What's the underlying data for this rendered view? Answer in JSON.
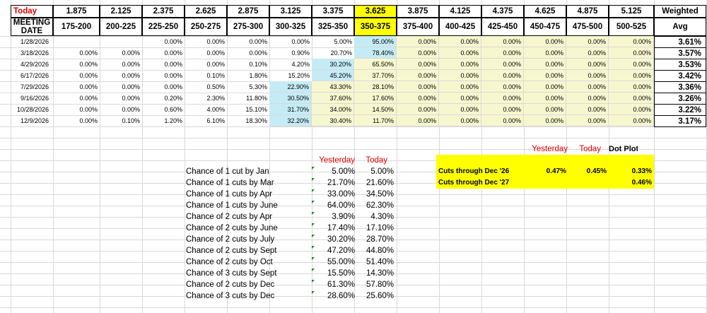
{
  "colors": {
    "highlight_yellow": "#ffff00",
    "pale_yellow": "#f7f7cf",
    "pale_blue": "#c5ecf5",
    "red": "#e00000",
    "comment_marker_green": "#1a8a1a"
  },
  "header": {
    "today_label": "Today",
    "meeting_label_line1": "MEETING",
    "meeting_label_line2": "DATE",
    "midpoints": [
      "1.875",
      "2.125",
      "2.375",
      "2.625",
      "2.875",
      "3.125",
      "3.375",
      "3.625",
      "3.875",
      "4.125",
      "4.375",
      "4.625",
      "4.875",
      "5.125"
    ],
    "ranges": [
      "175-200",
      "200-225",
      "225-250",
      "250-275",
      "275-300",
      "300-325",
      "325-350",
      "350-375",
      "375-400",
      "400-425",
      "425-450",
      "450-475",
      "475-500",
      "500-525"
    ],
    "weighted_label": "Weighted",
    "avg_label": "Avg"
  },
  "rows": [
    {
      "date": "1/28/2026",
      "vals": [
        "",
        "",
        "0.00%",
        "0.00%",
        "0.00%",
        "0.00%",
        "5.00%",
        "95.00%",
        "0.00%",
        "0.00%",
        "0.00%",
        "0.00%",
        "0.00%",
        "0.00%"
      ],
      "fills": [
        "",
        "",
        "",
        "",
        "",
        "",
        "",
        "b",
        "y",
        "y",
        "y",
        "y",
        "y",
        "y"
      ],
      "avg": "3.61%"
    },
    {
      "date": "3/18/2026",
      "vals": [
        "0.00%",
        "0.00%",
        "0.00%",
        "0.00%",
        "0.00%",
        "0.90%",
        "20.70%",
        "78.40%",
        "0.00%",
        "0.00%",
        "0.00%",
        "0.00%",
        "0.00%",
        "0.00%"
      ],
      "fills": [
        "",
        "",
        "",
        "",
        "",
        "",
        "",
        "b",
        "y",
        "y",
        "y",
        "y",
        "y",
        "y"
      ],
      "avg": "3.57%"
    },
    {
      "date": "4/29/2026",
      "vals": [
        "0.00%",
        "0.00%",
        "0.00%",
        "0.00%",
        "0.10%",
        "4.20%",
        "30.20%",
        "65.50%",
        "0.00%",
        "0.00%",
        "0.00%",
        "0.00%",
        "0.00%",
        "0.00%"
      ],
      "fills": [
        "",
        "",
        "",
        "",
        "",
        "",
        "b",
        "y",
        "y",
        "y",
        "y",
        "y",
        "y",
        "y"
      ],
      "avg": "3.53%"
    },
    {
      "date": "6/17/2026",
      "vals": [
        "0.00%",
        "0.00%",
        "0.00%",
        "0.10%",
        "1.80%",
        "15.20%",
        "45.20%",
        "37.70%",
        "0.00%",
        "0.00%",
        "0.00%",
        "0.00%",
        "0.00%",
        "0.00%"
      ],
      "fills": [
        "",
        "",
        "",
        "",
        "",
        "",
        "b",
        "y",
        "y",
        "y",
        "y",
        "y",
        "y",
        "y"
      ],
      "avg": "3.42%"
    },
    {
      "date": "7/29/2026",
      "vals": [
        "0.00%",
        "0.00%",
        "0.00%",
        "0.50%",
        "5.30%",
        "22.90%",
        "43.30%",
        "28.10%",
        "0.00%",
        "0.00%",
        "0.00%",
        "0.00%",
        "0.00%",
        "0.00%"
      ],
      "fills": [
        "",
        "",
        "",
        "",
        "",
        "b",
        "y",
        "y",
        "y",
        "y",
        "y",
        "y",
        "y",
        "y"
      ],
      "avg": "3.36%"
    },
    {
      "date": "9/16/2026",
      "vals": [
        "0.00%",
        "0.00%",
        "0.20%",
        "2.30%",
        "11.80%",
        "30.50%",
        "37.60%",
        "17.60%",
        "0.00%",
        "0.00%",
        "0.00%",
        "0.00%",
        "0.00%",
        "0.00%"
      ],
      "fills": [
        "",
        "",
        "",
        "",
        "",
        "b",
        "y",
        "y",
        "y",
        "y",
        "y",
        "y",
        "y",
        "y"
      ],
      "avg": "3.26%"
    },
    {
      "date": "10/28/2026",
      "vals": [
        "0.00%",
        "0.00%",
        "0.60%",
        "4.00%",
        "15.10%",
        "31.70%",
        "34.00%",
        "14.50%",
        "0.00%",
        "0.00%",
        "0.00%",
        "0.00%",
        "0.00%",
        "0.00%"
      ],
      "fills": [
        "",
        "",
        "",
        "",
        "",
        "b",
        "y",
        "y",
        "y",
        "y",
        "y",
        "y",
        "y",
        "y"
      ],
      "avg": "3.22%"
    },
    {
      "date": "12/9/2026",
      "vals": [
        "0.00%",
        "0.10%",
        "1.20%",
        "6.10%",
        "18.30%",
        "32.20%",
        "30.40%",
        "11.70%",
        "0.00%",
        "0.00%",
        "0.00%",
        "0.00%",
        "0.00%",
        "0.00%"
      ],
      "fills": [
        "",
        "",
        "",
        "",
        "",
        "b",
        "y",
        "y",
        "y",
        "y",
        "y",
        "y",
        "y",
        "y"
      ],
      "avg": "3.17%"
    }
  ],
  "cuts_table": {
    "yesterday_label": "Yesterday",
    "today_label": "Today",
    "items": [
      {
        "label": "Chance of 1 cut by Jan",
        "yesterday": "5.00%",
        "today": "5.00%"
      },
      {
        "label": "Chance of 1 cuts by Mar",
        "yesterday": "21.70%",
        "today": "21.60%"
      },
      {
        "label": "Chance of 1 cuts by Apr",
        "yesterday": "33.00%",
        "today": "34.50%"
      },
      {
        "label": "Chance of 1 cuts by June",
        "yesterday": "64.00%",
        "today": "62.30%"
      },
      {
        "label": "Chance of 2 cuts by Apr",
        "yesterday": "3.90%",
        "today": "4.30%"
      },
      {
        "label": "Chance of 2 cuts by June",
        "yesterday": "17.40%",
        "today": "17.10%"
      },
      {
        "label": "Chance of 2 cuts by July",
        "yesterday": "30.20%",
        "today": "28.70%"
      },
      {
        "label": "Chance of 2 cuts by Sept",
        "yesterday": "47.20%",
        "today": "44.80%"
      },
      {
        "label": "Chance of 2 cuts by Oct",
        "yesterday": "55.00%",
        "today": "51.40%"
      },
      {
        "label": "Chance of 3 cuts by Sept",
        "yesterday": "15.50%",
        "today": "14.30%"
      },
      {
        "label": "Chance of 2 cuts by Dec",
        "yesterday": "61.30%",
        "today": "57.80%"
      },
      {
        "label": "Chance of 3 cuts by Dec",
        "yesterday": "28.60%",
        "today": "25.60%"
      }
    ]
  },
  "through_table": {
    "yesterday_label": "Yesterday",
    "today_label": "Today",
    "dotplot_label": "Dot Plot",
    "rows": [
      {
        "label": "Cuts through Dec '26",
        "yesterday": "0.47%",
        "today": "0.45%",
        "dotplot": "0.33%"
      },
      {
        "label": "Cuts through Dec '27",
        "yesterday": "",
        "today": "",
        "dotplot": "0.46%"
      }
    ]
  }
}
